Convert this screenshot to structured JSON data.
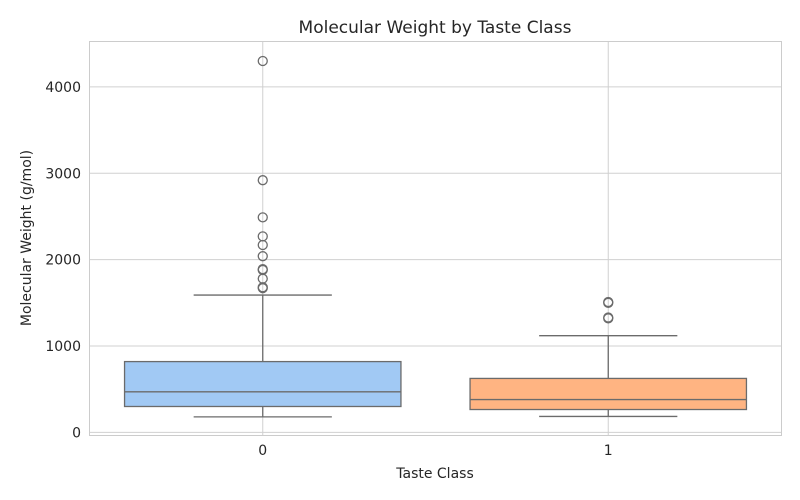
{
  "chart_data": {
    "type": "box",
    "title": "Molecular Weight by Taste Class",
    "xlabel": "Taste Class",
    "ylabel": "Molecular Weight (g/mol)",
    "ylim": [
      -30,
      4520
    ],
    "yticks": [
      0,
      1000,
      2000,
      3000,
      4000
    ],
    "grid": true,
    "categories": [
      "0",
      "1"
    ],
    "boxes": [
      {
        "category": "0",
        "color": "#a1c9f4",
        "whisker_low": 180,
        "q1": 300,
        "median": 470,
        "q3": 820,
        "whisker_high": 1590,
        "outliers": [
          1670,
          1680,
          1780,
          1880,
          1890,
          2040,
          2170,
          2270,
          2490,
          2920,
          4300
        ]
      },
      {
        "category": "1",
        "color": "#ffb482",
        "whisker_low": 185,
        "q1": 265,
        "median": 380,
        "q3": 625,
        "whisker_high": 1120,
        "outliers": [
          1320,
          1330,
          1500,
          1510
        ]
      }
    ]
  }
}
